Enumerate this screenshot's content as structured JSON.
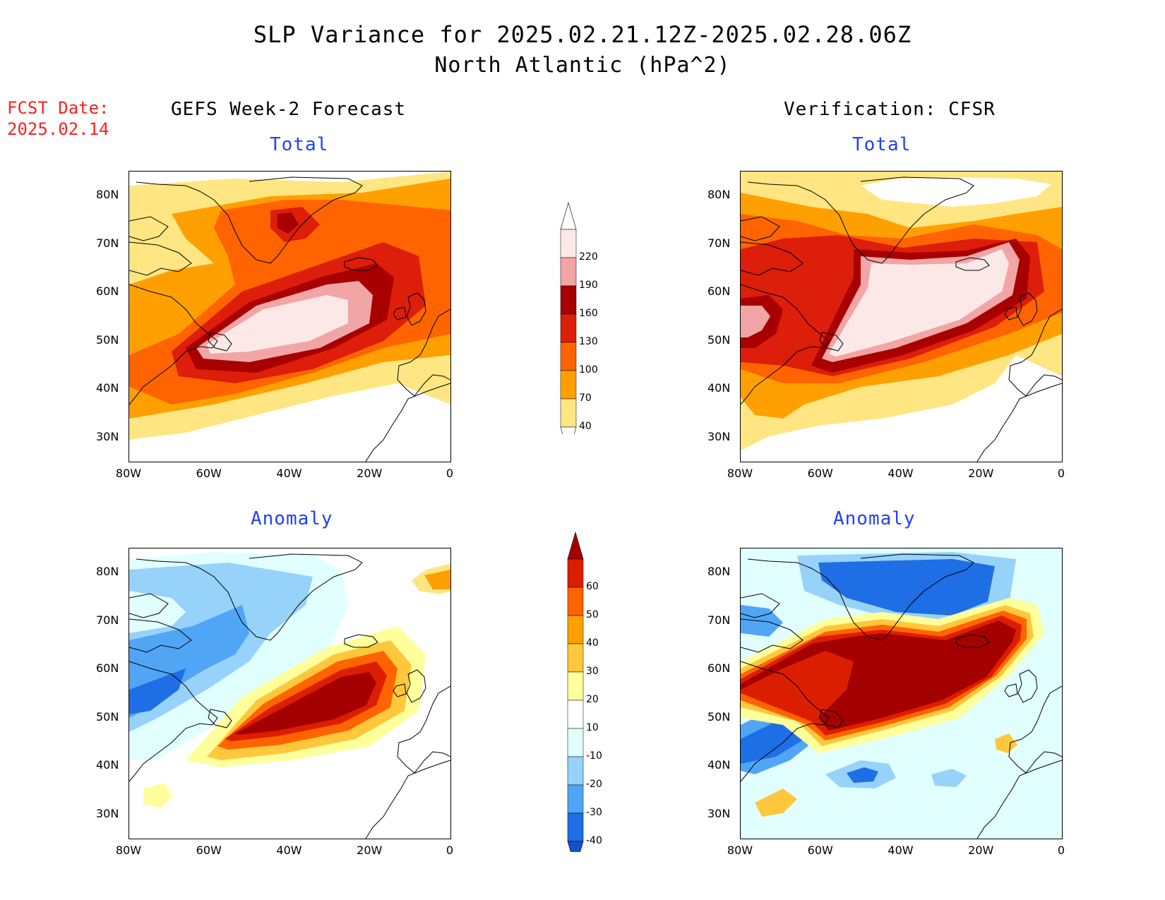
{
  "title": {
    "line1": "SLP Variance for 2025.02.21.12Z-2025.02.28.06Z",
    "line2": "North Atlantic (hPa^2)"
  },
  "fcst_date": {
    "label": "FCST Date:",
    "value": "2025.02.14"
  },
  "columns": {
    "left": "GEFS Week-2 Forecast",
    "right": "Verification: CFSR"
  },
  "panels": {
    "top_left": "Total",
    "top_right": "Total",
    "bottom_left": "Anomaly",
    "bottom_right": "Anomaly"
  },
  "axes": {
    "lat_labels": [
      "80N",
      "70N",
      "60N",
      "50N",
      "40N",
      "30N"
    ],
    "lon_labels": [
      "80W",
      "60W",
      "40W",
      "20W",
      "0"
    ],
    "lat_values": [
      80,
      70,
      60,
      50,
      40,
      30
    ],
    "lon_values": [
      -80,
      -60,
      -40,
      -20,
      0
    ],
    "lat_range": [
      25,
      85
    ],
    "lon_range": [
      -80,
      0
    ]
  },
  "colorbars": {
    "total": {
      "labels": [
        "220",
        "190",
        "160",
        "130",
        "100",
        "70",
        "40"
      ],
      "colors": [
        "#fde8e8",
        "#f2a5a5",
        "#a80000",
        "#dc1e0a",
        "#ff6400",
        "#ffa000",
        "#ffe682"
      ]
    },
    "anomaly": {
      "labels": [
        "60",
        "50",
        "40",
        "30",
        "20",
        "10",
        "-10",
        "-20",
        "-30",
        "-40"
      ],
      "colors": [
        "#a50000",
        "#dc1e00",
        "#ff6400",
        "#ffa000",
        "#ffc83c",
        "#ffff9c",
        "#ffffff",
        "#e1ffff",
        "#96d2fa",
        "#50a5f5",
        "#1e6ee6",
        "#1450c8"
      ]
    }
  }
}
